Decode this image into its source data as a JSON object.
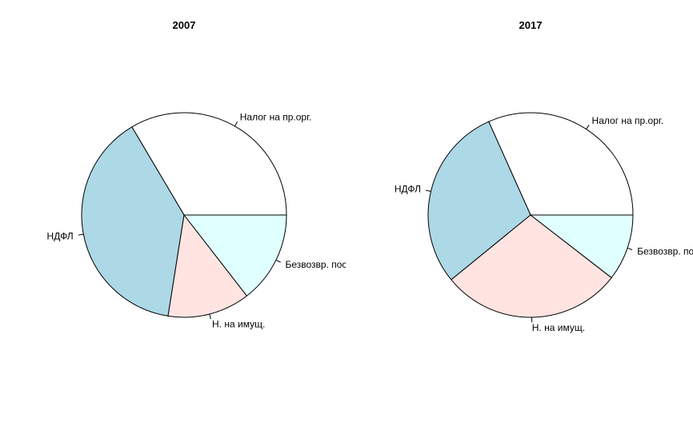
{
  "chart_data": [
    {
      "type": "pie",
      "title": "2007",
      "direction": "counterclockwise",
      "start": "3 o'clock",
      "slices": [
        {
          "label": "Налог на пр.орг.",
          "value": 33.5,
          "color": "#ffffff"
        },
        {
          "label": "НДФЛ",
          "value": 39.0,
          "color": "#add8e6"
        },
        {
          "label": "Н. на имущ.",
          "value": 13.0,
          "color": "#ffe4e1"
        },
        {
          "label": "Безвозвр. пос",
          "value": 14.5,
          "color": "#e0ffff"
        }
      ]
    },
    {
      "type": "pie",
      "title": "2017",
      "direction": "counterclockwise",
      "start": "3 o'clock",
      "slices": [
        {
          "label": "Налог на пр.орг.",
          "value": 31.7,
          "color": "#ffffff"
        },
        {
          "label": "НДФЛ",
          "value": 29.2,
          "color": "#add8e6"
        },
        {
          "label": "Н. на имущ.",
          "value": 28.6,
          "color": "#ffe4e1"
        },
        {
          "label": "Безвозвр. пос",
          "value": 10.5,
          "color": "#e0ffff"
        }
      ]
    }
  ]
}
